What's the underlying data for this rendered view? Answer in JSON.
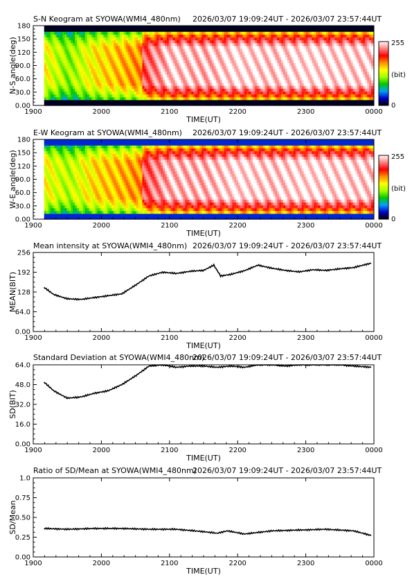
{
  "time_range": "2026/03/07 19:09:24UT - 2026/03/07 23:57:44UT",
  "x_axis": {
    "label": "TIME(UT)",
    "ticks": [
      "1900",
      "2000",
      "2100",
      "2200",
      "2300",
      "0000"
    ],
    "range": [
      19.0,
      24.0
    ]
  },
  "chart_data": [
    {
      "type": "heatmap",
      "title": "S-N Keogram at SYOWA(WMI4_480nm)",
      "ylabel": "N-S angle(deg)",
      "yticks": [
        "0.00",
        "30.0",
        "60.0",
        "90.0",
        "120",
        "150",
        "180"
      ],
      "ylim": [
        0,
        180
      ],
      "colorbar": {
        "max_label": "255",
        "unit_label": "(bit)",
        "min_label": "0",
        "colors": [
          "#000000",
          "#0000c8",
          "#00a0ff",
          "#00c800",
          "#a0ff00",
          "#ffff00",
          "#ff9000",
          "#ff0000",
          "#ff8080",
          "#ffffff"
        ]
      },
      "intensity_profile": {
        "hours": [
          19.16,
          19.5,
          19.9,
          20.3,
          20.58,
          20.6,
          21.0,
          21.5,
          22.0,
          22.5,
          23.0,
          23.97
        ],
        "values": [
          140,
          110,
          145,
          160,
          170,
          215,
          245,
          240,
          250,
          245,
          250,
          245
        ]
      }
    },
    {
      "type": "heatmap",
      "title": "E-W Keogram at SYOWA(WMI4_480nm)",
      "ylabel": "W-E angle(deg)",
      "yticks": [
        "0.00",
        "30.0",
        "60.0",
        "90.0",
        "120",
        "150",
        "180"
      ],
      "ylim": [
        0,
        180
      ],
      "colorbar": {
        "max_label": "255",
        "unit_label": "(bit)",
        "min_label": "0"
      },
      "intensity_profile": {
        "hours": [
          19.16,
          19.5,
          19.9,
          20.3,
          20.58,
          20.6,
          21.0,
          21.5,
          22.0,
          22.5,
          23.0,
          23.97
        ],
        "values": [
          140,
          120,
          150,
          160,
          170,
          215,
          240,
          240,
          250,
          245,
          250,
          245
        ]
      }
    },
    {
      "type": "line",
      "title": "Mean intensity at SYOWA(WMI4_480nm)",
      "ylabel": "MEAN(BIT)",
      "yticks": [
        "0.00",
        "64.0",
        "128",
        "192",
        "256"
      ],
      "ylim": [
        0,
        256
      ],
      "x": [
        19.16,
        19.3,
        19.5,
        19.7,
        19.9,
        20.1,
        20.3,
        20.5,
        20.7,
        20.9,
        21.1,
        21.3,
        21.5,
        21.65,
        21.75,
        21.9,
        22.1,
        22.3,
        22.5,
        22.7,
        22.9,
        23.1,
        23.3,
        23.5,
        23.7,
        23.97
      ],
      "series": [
        {
          "values": [
            143,
            120,
            106,
            104,
            110,
            116,
            122,
            150,
            180,
            192,
            188,
            195,
            198,
            215,
            180,
            185,
            197,
            215,
            205,
            198,
            193,
            200,
            198,
            203,
            207,
            222
          ]
        }
      ]
    },
    {
      "type": "line",
      "title": "Standard Deviation at SYOWA(WMI4_480nm)",
      "ylabel": "SD(BIT)",
      "yticks": [
        "0.00",
        "16.0",
        "32.0",
        "48.0",
        "64.0"
      ],
      "ylim": [
        0,
        64
      ],
      "x": [
        19.16,
        19.3,
        19.5,
        19.7,
        19.9,
        20.1,
        20.3,
        20.5,
        20.7,
        20.9,
        21.1,
        21.3,
        21.5,
        21.7,
        21.9,
        22.1,
        22.3,
        22.5,
        22.7,
        22.9,
        23.1,
        23.3,
        23.5,
        23.7,
        23.97
      ],
      "series": [
        {
          "values": [
            50,
            43,
            37,
            38,
            41,
            43,
            48,
            55,
            63,
            64,
            62,
            63,
            63,
            62,
            63,
            62,
            64,
            64,
            63,
            64,
            64,
            64,
            64,
            63,
            62
          ]
        }
      ]
    },
    {
      "type": "line",
      "title": "Ratio of SD/Mean at SYOWA(WMI4_480nm)",
      "ylabel": "SD/Mean",
      "yticks": [
        "0.00",
        "0.25",
        "0.50",
        "0.75",
        "1.0"
      ],
      "ylim": [
        0,
        1.0
      ],
      "x": [
        19.16,
        19.5,
        19.9,
        20.3,
        20.7,
        21.1,
        21.5,
        21.7,
        21.85,
        22.1,
        22.5,
        22.9,
        23.3,
        23.7,
        23.97
      ],
      "series": [
        {
          "values": [
            0.36,
            0.35,
            0.36,
            0.36,
            0.35,
            0.35,
            0.32,
            0.3,
            0.33,
            0.29,
            0.33,
            0.34,
            0.35,
            0.33,
            0.27
          ]
        }
      ]
    }
  ]
}
